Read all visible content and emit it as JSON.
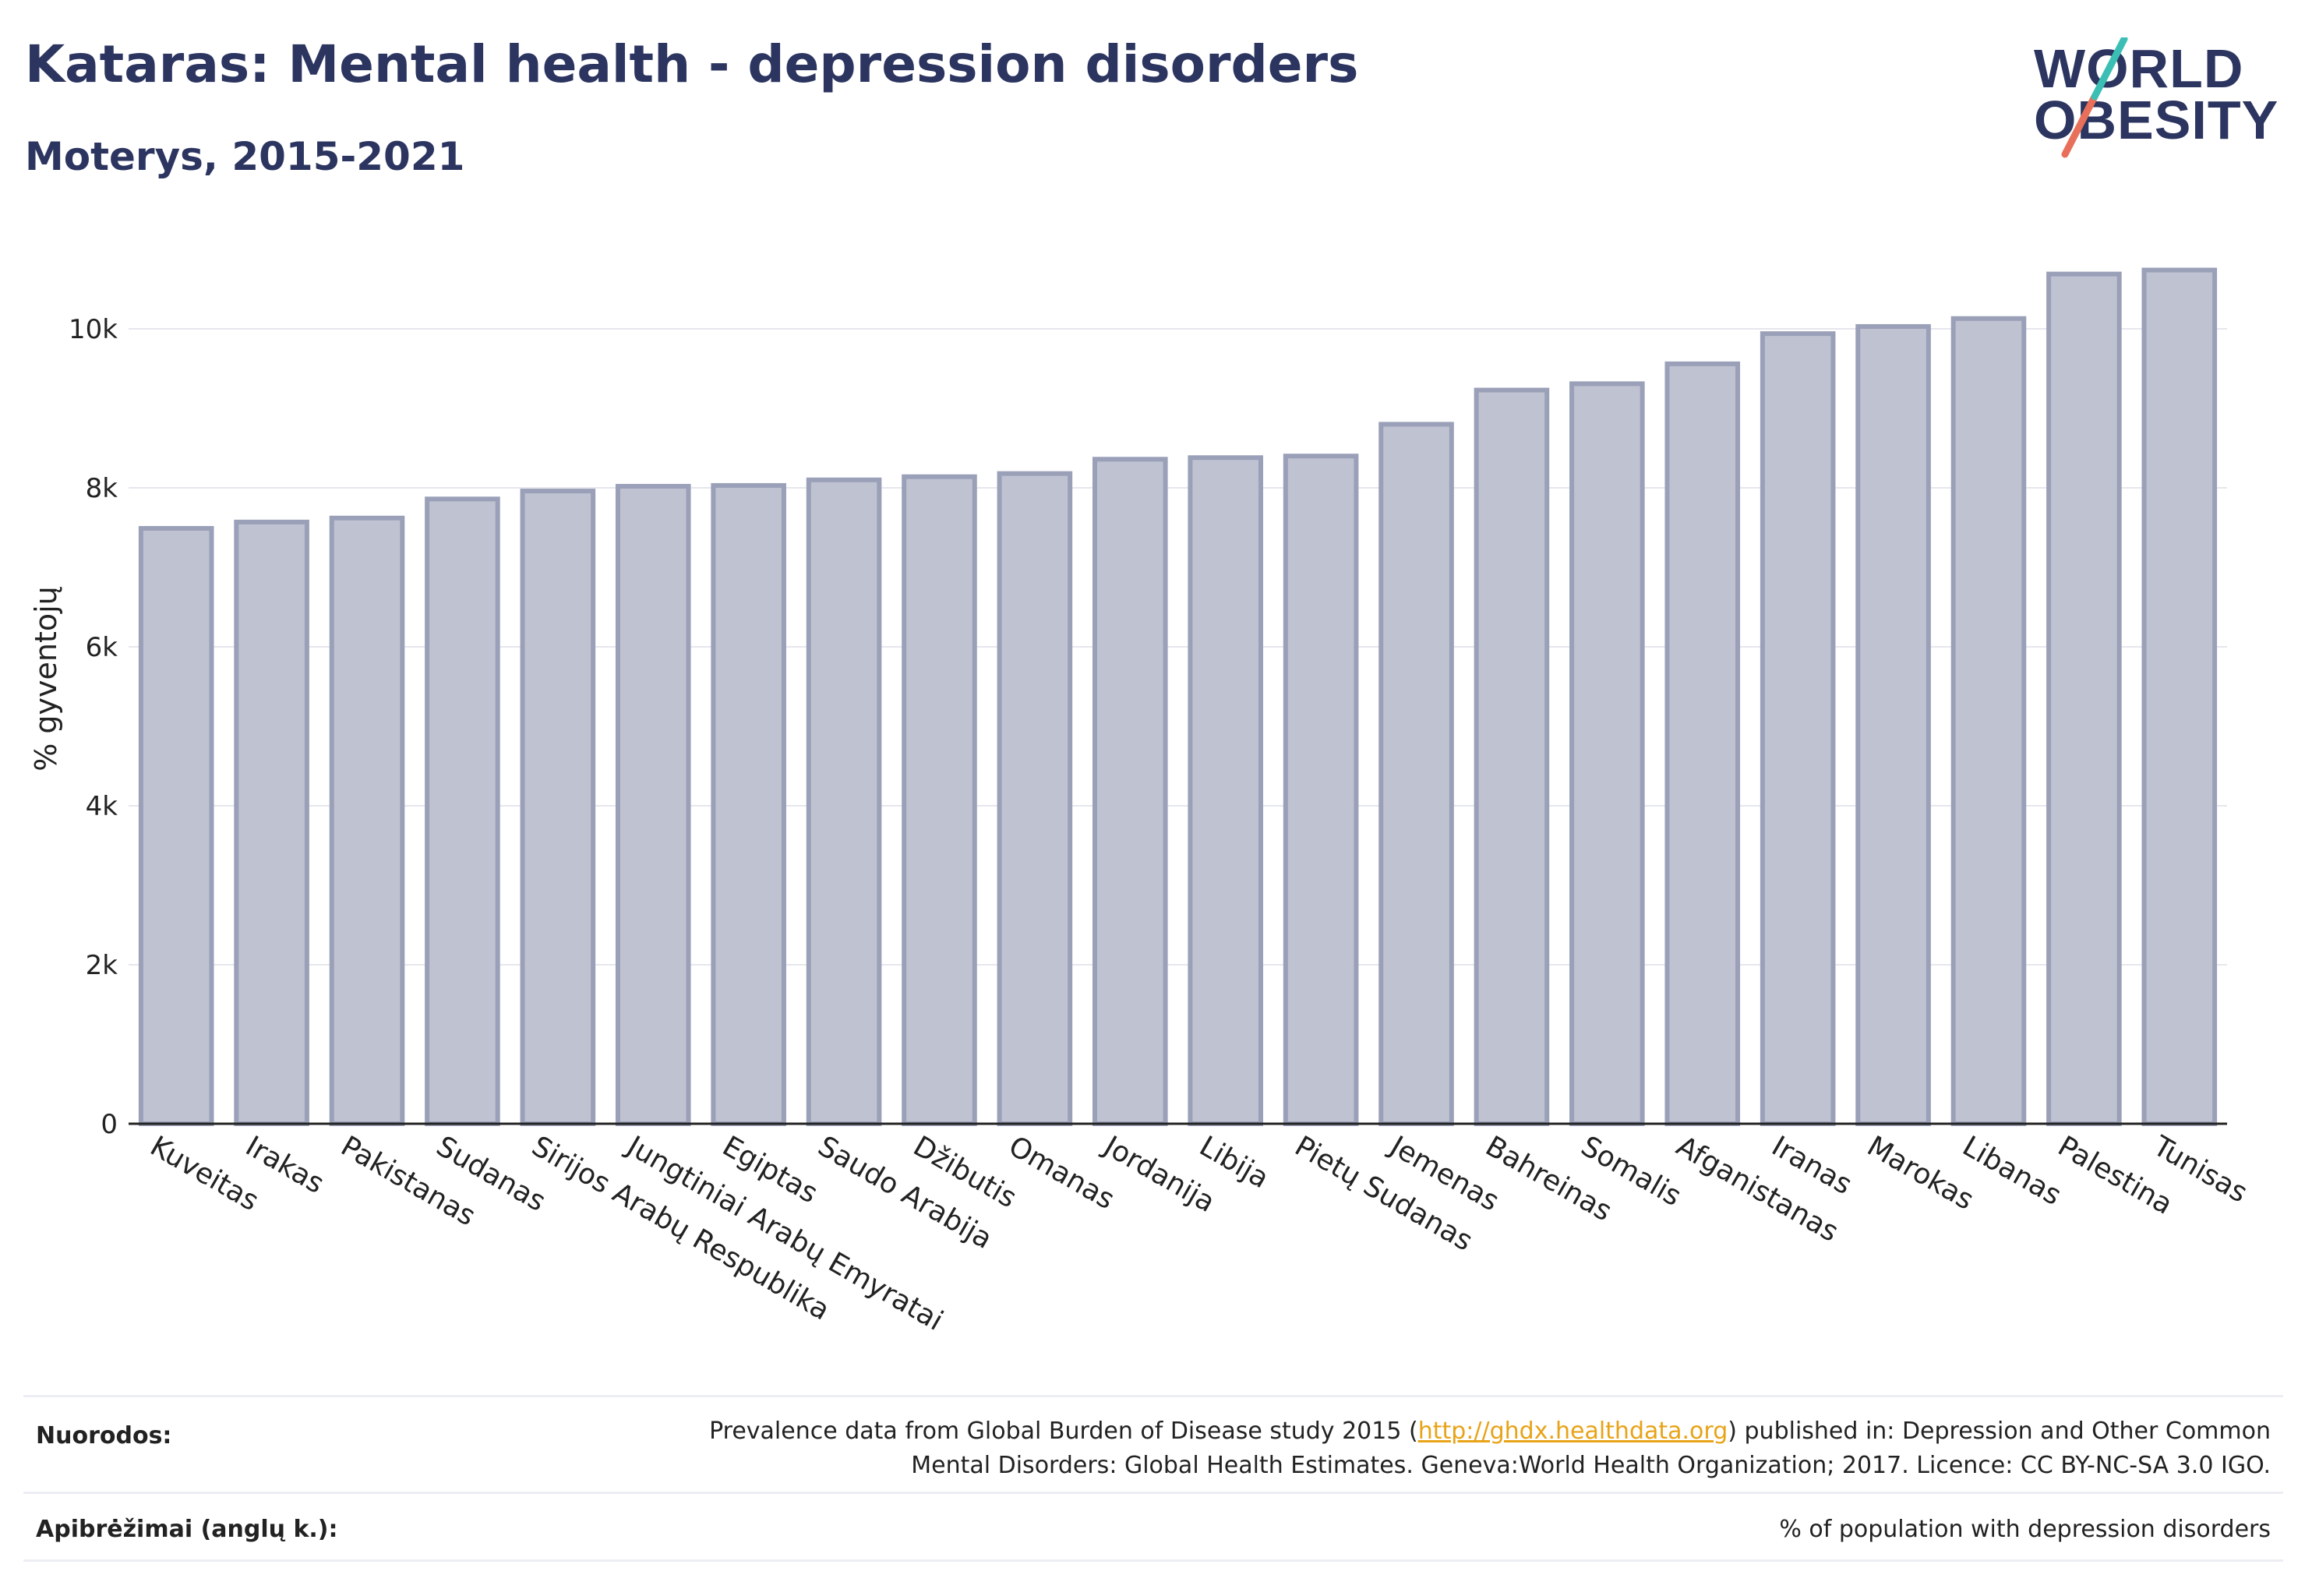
{
  "title": "Kataras: Mental health - depression disorders",
  "subtitle": "Moterys, 2015-2021",
  "logo": {
    "line1": "WORLD",
    "line2": "OBESITY"
  },
  "chart_data": {
    "type": "bar",
    "ylabel": "% gyventojų",
    "ylim": [
      0,
      11000
    ],
    "yticks": [
      0,
      2000,
      4000,
      6000,
      8000,
      10000
    ],
    "ytick_labels": [
      "0",
      "2k",
      "4k",
      "6k",
      "8k",
      "10k"
    ],
    "grid": true,
    "categories": [
      "Kuveitas",
      "Irakas",
      "Pakistanas",
      "Sudanas",
      "Sirijos Arabų Respublika",
      "Jungtiniai Arabų Emyratai",
      "Egiptas",
      "Saudo Arabija",
      "Džibutis",
      "Omanas",
      "Jordanija",
      "Libija",
      "Pietų Sudanas",
      "Jemenas",
      "Bahreinas",
      "Somalis",
      "Afganistanas",
      "Iranas",
      "Marokas",
      "Libanas",
      "Palestina",
      "Tunisas"
    ],
    "values": [
      7490,
      7570,
      7620,
      7860,
      7960,
      8020,
      8030,
      8100,
      8140,
      8180,
      8360,
      8380,
      8400,
      8800,
      9230,
      9310,
      9560,
      9940,
      10030,
      10130,
      10690,
      10740
    ],
    "bar_color": "#bfc2d1",
    "bar_edge_color": "#9aa0b8"
  },
  "footer": {
    "sources_label": "Nuorodos:",
    "sources_pre": "Prevalence data from Global Burden of Disease study 2015 (",
    "sources_link": "http://ghdx.healthdata.org",
    "sources_post": ") published in: Depression and Other Common",
    "sources_line2": "Mental Disorders: Global Health Estimates. Geneva:World Health Organization; 2017. Licence: CC BY-NC-SA 3.0 IGO.",
    "definitions_label": "Apibrėžimai (anglų k.):",
    "definitions_text": "% of population with depression disorders"
  }
}
